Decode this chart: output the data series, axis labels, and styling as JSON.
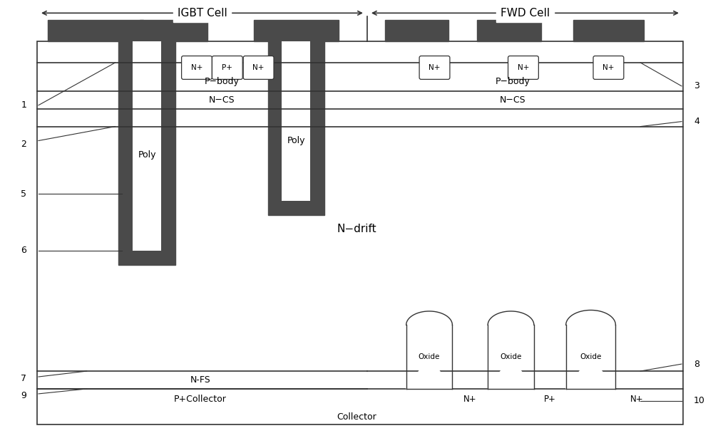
{
  "fig_width": 10.0,
  "fig_height": 6.22,
  "bg_color": "#ffffff",
  "dark_gray": "#4a4a4a",
  "line_color": "#333333",
  "title_arrow_label_igbt": "IGBT Cell",
  "title_arrow_label_fwd": "FWD Cell",
  "label_ndrift": "N−drift",
  "label_nfs": "N-FS",
  "label_pcollector": "P+Collector",
  "label_collector": "Collector",
  "label_poly1": "Poly",
  "label_poly2": "Poly",
  "label_pbody_igbt": "P−body",
  "label_pbody_fwd": "P−body",
  "label_ncs_igbt": "N−CS",
  "label_ncs_fwd": "N−CS"
}
